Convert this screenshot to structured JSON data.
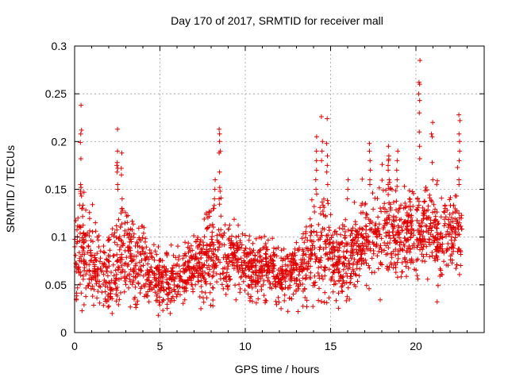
{
  "chart_data": {
    "type": "scatter",
    "title": "Day 170 of 2017, SRMTID for receiver mall",
    "xlabel": "GPS time / hours",
    "ylabel": "SRMTID / TECUs",
    "xlim": [
      0,
      24
    ],
    "ylim": [
      0,
      0.3
    ],
    "xticks": [
      0,
      5,
      10,
      15,
      20
    ],
    "xtick_labels": [
      "0",
      "5",
      "10",
      "15",
      "20"
    ],
    "yticks": [
      0,
      0.05,
      0.1,
      0.15,
      0.2,
      0.25,
      0.3
    ],
    "ytick_labels": [
      "0",
      "0.05",
      "0.1",
      "0.15",
      "0.2",
      "0.25",
      "0.3"
    ],
    "grid": true,
    "marker": "plus",
    "marker_color": "#e00000",
    "series": [
      {
        "name": "SRMTID",
        "color": "#e00000",
        "profile_hours": [
          0,
          0.5,
          1,
          1.5,
          2,
          2.5,
          3,
          3.5,
          4,
          4.5,
          5,
          5.5,
          6,
          6.5,
          7,
          7.5,
          8,
          8.5,
          9,
          9.5,
          10,
          10.5,
          11,
          11.5,
          12,
          12.5,
          13,
          13.5,
          14,
          14.5,
          15,
          15.5,
          16,
          16.5,
          17,
          17.5,
          18,
          18.5,
          19,
          19.5,
          20,
          20.5,
          21,
          21.5,
          22,
          22.5,
          22.7
        ],
        "profile_median": [
          0.075,
          0.085,
          0.07,
          0.065,
          0.06,
          0.07,
          0.09,
          0.065,
          0.07,
          0.06,
          0.06,
          0.055,
          0.055,
          0.065,
          0.07,
          0.075,
          0.085,
          0.09,
          0.075,
          0.08,
          0.07,
          0.065,
          0.065,
          0.07,
          0.06,
          0.06,
          0.07,
          0.075,
          0.09,
          0.09,
          0.085,
          0.07,
          0.075,
          0.085,
          0.1,
          0.1,
          0.1,
          0.115,
          0.1,
          0.105,
          0.11,
          0.11,
          0.1,
          0.1,
          0.105,
          0.11,
          0.11
        ],
        "profile_spread": [
          0.03,
          0.035,
          0.03,
          0.025,
          0.03,
          0.03,
          0.035,
          0.025,
          0.025,
          0.02,
          0.02,
          0.02,
          0.02,
          0.02,
          0.02,
          0.025,
          0.03,
          0.03,
          0.025,
          0.025,
          0.02,
          0.02,
          0.02,
          0.02,
          0.02,
          0.02,
          0.02,
          0.025,
          0.035,
          0.04,
          0.03,
          0.025,
          0.025,
          0.025,
          0.03,
          0.03,
          0.035,
          0.035,
          0.03,
          0.03,
          0.03,
          0.03,
          0.03,
          0.03,
          0.025,
          0.03,
          0.03
        ],
        "point_count": 2300,
        "bursts": [
          {
            "x": 0.38,
            "y": [
              0.238,
              0.212,
              0.208,
              0.199,
              0.182,
              0.155,
              0.152,
              0.148
            ]
          },
          {
            "x": 2.5,
            "y": [
              0.213,
              0.19,
              0.178,
              0.175,
              0.172,
              0.168,
              0.155,
              0.15
            ]
          },
          {
            "x": 2.75,
            "y": [
              0.188,
              0.172,
              0.165,
              0.14,
              0.13
            ]
          },
          {
            "x": 8.5,
            "y": [
              0.213,
              0.208,
              0.2,
              0.19,
              0.188,
              0.168,
              0.152,
              0.148,
              0.14
            ]
          },
          {
            "x": 8.2,
            "y": [
              0.16,
              0.15,
              0.14,
              0.13
            ]
          },
          {
            "x": 14.15,
            "y": [
              0.205,
              0.19,
              0.18,
              0.17,
              0.16,
              0.15,
              0.145
            ]
          },
          {
            "x": 14.5,
            "y": [
              0.226,
              0.2,
              0.19,
              0.18
            ]
          },
          {
            "x": 14.8,
            "y": [
              0.224,
              0.198,
              0.185,
              0.175,
              0.168,
              0.155
            ]
          },
          {
            "x": 16.0,
            "y": [
              0.16,
              0.15,
              0.14
            ]
          },
          {
            "x": 17.3,
            "y": [
              0.198,
              0.19,
              0.18,
              0.17,
              0.16,
              0.155
            ]
          },
          {
            "x": 18.4,
            "y": [
              0.195,
              0.185,
              0.18,
              0.175,
              0.17,
              0.16,
              0.155
            ]
          },
          {
            "x": 18.9,
            "y": [
              0.19,
              0.18,
              0.17,
              0.16
            ]
          },
          {
            "x": 20.2,
            "y": [
              0.285,
              0.262,
              0.26,
              0.25,
              0.243,
              0.23,
              0.21,
              0.195,
              0.182
            ]
          },
          {
            "x": 20.95,
            "y": [
              0.22,
              0.208,
              0.205,
              0.178,
              0.16
            ]
          },
          {
            "x": 22.55,
            "y": [
              0.228,
              0.222,
              0.208,
              0.2,
              0.19,
              0.18,
              0.16,
              0.155
            ]
          }
        ],
        "low_outliers": [
          {
            "x": 2.2,
            "y": 0.02
          },
          {
            "x": 4.9,
            "y": 0.018
          },
          {
            "x": 5.6,
            "y": 0.02
          },
          {
            "x": 7.4,
            "y": 0.025
          },
          {
            "x": 12.1,
            "y": 0.025
          },
          {
            "x": 13.1,
            "y": 0.022
          },
          {
            "x": 16.1,
            "y": 0.035
          },
          {
            "x": 0.1,
            "y": 0.035
          }
        ]
      }
    ]
  }
}
